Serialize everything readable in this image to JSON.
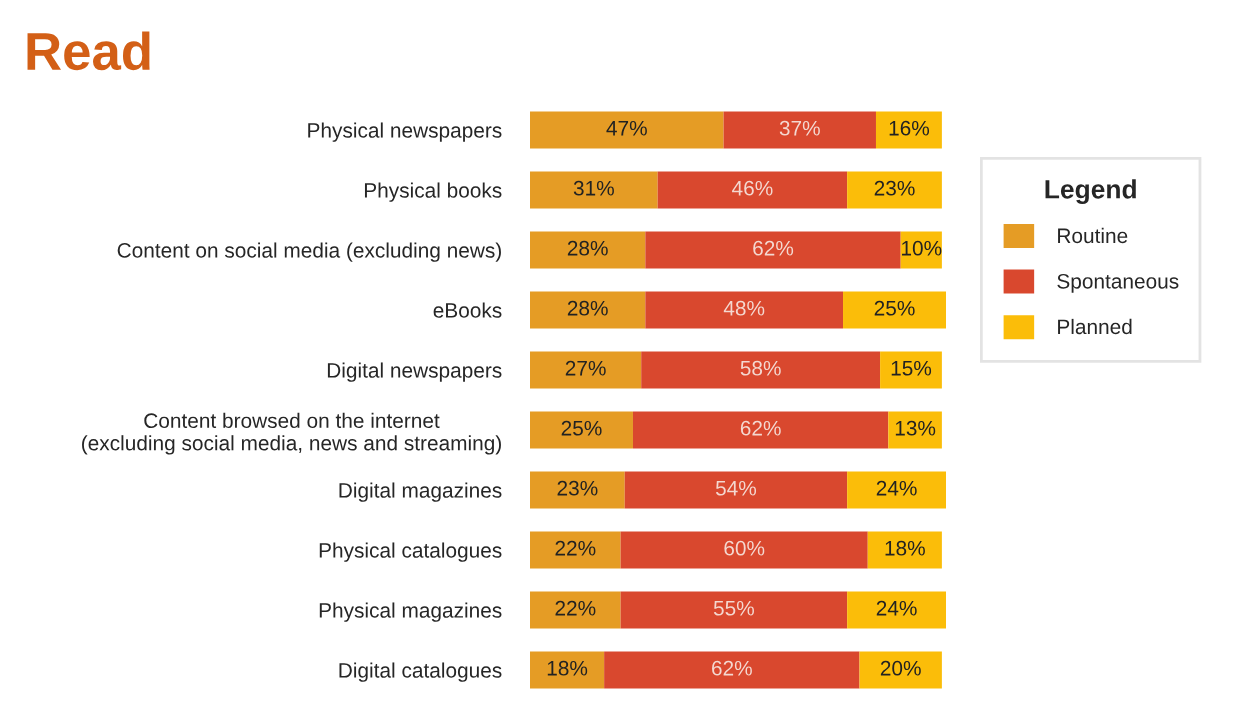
{
  "chart_data": {
    "type": "bar",
    "orientation": "horizontal",
    "stacked": true,
    "title": "Read",
    "legend_title": "Legend",
    "legend": "right",
    "tick_labels": "y",
    "grid": false,
    "categories": [
      "Physical newspapers",
      "Physical books",
      "Content on social media (excluding news)",
      "eBooks",
      "Digital newspapers",
      "Content browsed on the internet\n(excluding social media, news and streaming)",
      "Digital magazines",
      "Physical catalogues",
      "Physical magazines",
      "Digital catalogues"
    ],
    "series": [
      {
        "name": "Routine",
        "color": "#e59c25",
        "values": [
          47,
          31,
          28,
          28,
          27,
          25,
          23,
          22,
          22,
          18
        ],
        "value_labels": [
          "47%",
          "31%",
          "28%",
          "28%",
          "27%",
          "25%",
          "23%",
          "22%",
          "22%",
          "18%"
        ]
      },
      {
        "name": "Spontaneous",
        "color": "#d9482e",
        "values": [
          37,
          46,
          62,
          48,
          58,
          62,
          54,
          60,
          55,
          62
        ],
        "value_labels": [
          "37%",
          "46%",
          "62%",
          "48%",
          "58%",
          "62%",
          "54%",
          "60%",
          "55%",
          "62%"
        ]
      },
      {
        "name": "Planned",
        "color": "#fbbd09",
        "values": [
          16,
          23,
          10,
          25,
          15,
          13,
          24,
          18,
          24,
          20
        ],
        "value_labels": [
          "16%",
          "23%",
          "10%",
          "25%",
          "15%",
          "13%",
          "24%",
          "18%",
          "24%",
          "20%"
        ]
      }
    ]
  }
}
